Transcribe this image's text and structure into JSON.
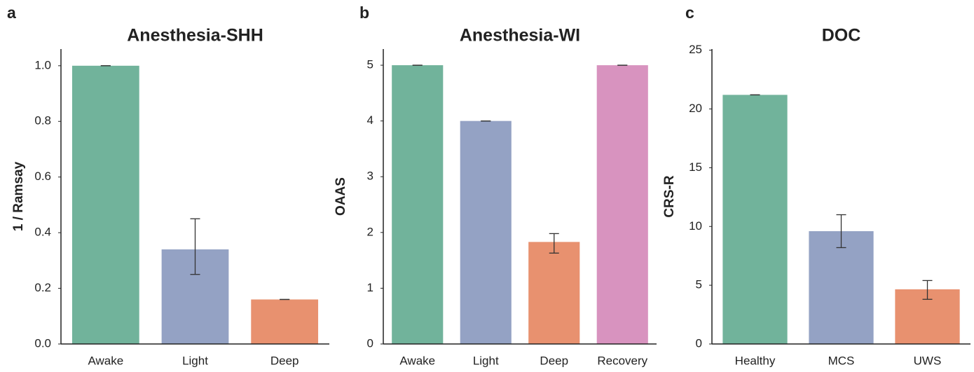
{
  "chart_data": [
    {
      "type": "bar",
      "panel": "a",
      "title": "Anesthesia-SHH",
      "ylabel": "1 / Ramsay",
      "categories": [
        "Awake",
        "Light",
        "Deep"
      ],
      "values": [
        1.0,
        0.34,
        0.16
      ],
      "ci_low": [
        1.0,
        0.25,
        0.16
      ],
      "ci_high": [
        1.0,
        0.45,
        0.16
      ],
      "colors": [
        "#71b39b",
        "#94a2c4",
        "#e8916f"
      ],
      "ylim": [
        0,
        1.06
      ],
      "yticks": [
        {
          "value": 0,
          "label": "0.0"
        },
        0.2,
        0.4,
        0.6,
        0.8,
        {
          "value": 1,
          "label": "1.0"
        }
      ]
    },
    {
      "type": "bar",
      "panel": "b",
      "title": "Anesthesia-WI",
      "ylabel": "OAAS",
      "categories": [
        "Awake",
        "Light",
        "Deep",
        "Recovery"
      ],
      "values": [
        5,
        4,
        1.83,
        5
      ],
      "ci_low": [
        5,
        4,
        1.63,
        5
      ],
      "ci_high": [
        5,
        4,
        1.98,
        5
      ],
      "colors": [
        "#71b39b",
        "#94a2c4",
        "#e8916f",
        "#d893bf"
      ],
      "ylim": [
        0,
        5.29
      ],
      "yticks": [
        0,
        1,
        2,
        3,
        4,
        5
      ]
    },
    {
      "type": "bar",
      "panel": "c",
      "title": "DOC",
      "ylabel": "CRS-R",
      "categories": [
        "Healthy",
        "MCS",
        "UWS"
      ],
      "values": [
        21.2,
        9.6,
        4.65
      ],
      "ci_low": [
        21.2,
        8.2,
        3.8
      ],
      "ci_high": [
        21.2,
        11.0,
        5.4
      ],
      "colors": [
        "#71b39b",
        "#94a2c4",
        "#e8916f"
      ],
      "ylim": [
        0,
        25.1
      ],
      "yticks": [
        0,
        5,
        10,
        15,
        20,
        25
      ]
    }
  ]
}
